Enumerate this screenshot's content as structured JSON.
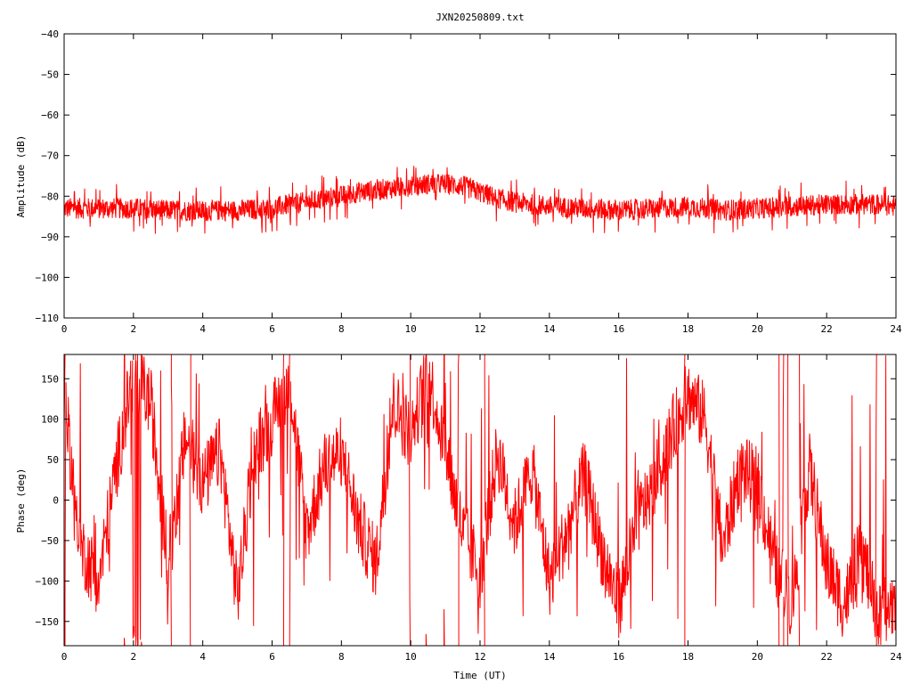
{
  "title": "JXN20250809.txt",
  "series_color": "#ff0000",
  "axis_color": "#000000",
  "chart_data": [
    {
      "type": "line",
      "panel": "amplitude",
      "title": "JXN20250809.txt",
      "xlabel": "",
      "ylabel": "Amplitude (dB)",
      "xlim": [
        0,
        24
      ],
      "ylim": [
        -110,
        -40
      ],
      "xticks": [
        "0",
        "2",
        "4",
        "6",
        "8",
        "10",
        "12",
        "14",
        "16",
        "18",
        "20",
        "22",
        "24"
      ],
      "yticks": [
        "-40",
        "-50",
        "-60",
        "-70",
        "-80",
        "-90",
        "-100",
        "-110"
      ],
      "grid": false,
      "series": [
        {
          "x": [
            0,
            0.5,
            1,
            1.5,
            2,
            2.5,
            3,
            3.5,
            4,
            4.5,
            5,
            5.5,
            6,
            6.5,
            7,
            7.5,
            8,
            8.5,
            9,
            9.5,
            10,
            10.5,
            11,
            11.5,
            12,
            12.5,
            13,
            13.5,
            14,
            14.5,
            15,
            15.5,
            16,
            16.5,
            17,
            17.5,
            18,
            18.5,
            19,
            19.5,
            20,
            20.5,
            21,
            21.5,
            22,
            22.5,
            23,
            23.5,
            24
          ],
          "values": [
            -83,
            -83,
            -83,
            -83,
            -83,
            -83.2,
            -83.5,
            -83.5,
            -83.7,
            -83.5,
            -83.5,
            -83.2,
            -83,
            -82,
            -81.5,
            -80.5,
            -80,
            -79,
            -78.5,
            -78,
            -77.5,
            -77,
            -77,
            -77.5,
            -79,
            -80.5,
            -81.5,
            -82,
            -82.5,
            -82.8,
            -83,
            -83.2,
            -83.5,
            -83.3,
            -83,
            -82.8,
            -82.5,
            -83,
            -83.5,
            -83.2,
            -83,
            -82.8,
            -82.5,
            -82.3,
            -82,
            -82,
            -82,
            -82,
            -82.5
          ],
          "spread_db": 4
        }
      ]
    },
    {
      "type": "line",
      "panel": "phase",
      "xlabel": "Time (UT)",
      "ylabel": "Phase (deg)",
      "xlim": [
        0,
        24
      ],
      "ylim": [
        -180,
        180
      ],
      "xticks": [
        "0",
        "2",
        "4",
        "6",
        "8",
        "10",
        "12",
        "14",
        "16",
        "18",
        "20",
        "22",
        "24"
      ],
      "yticks": [
        "150",
        "100",
        "50",
        "0",
        "-50",
        "-100",
        "-150"
      ],
      "grid": false,
      "series": [
        {
          "x": [
            0,
            0.5,
            1,
            1.5,
            2,
            2.5,
            3,
            3.5,
            4,
            4.5,
            5,
            5.5,
            6,
            6.5,
            7,
            7.5,
            8,
            8.5,
            9,
            9.5,
            10,
            10.5,
            11,
            11.5,
            12,
            12.5,
            13,
            13.5,
            14,
            14.5,
            15,
            15.5,
            16,
            16.5,
            17,
            17.5,
            18,
            18.5,
            19,
            19.5,
            20,
            20.5,
            21,
            21.5,
            22,
            22.5,
            23,
            23.5,
            24
          ],
          "values": [
            120,
            -60,
            -100,
            40,
            160,
            120,
            -80,
            80,
            20,
            60,
            -120,
            60,
            100,
            150,
            -40,
            40,
            60,
            -30,
            -80,
            120,
            80,
            160,
            60,
            -40,
            -90,
            60,
            -30,
            40,
            -100,
            -40,
            30,
            -60,
            -130,
            -30,
            20,
            80,
            130,
            100,
            -60,
            40,
            20,
            -80,
            -130,
            40,
            -80,
            -130,
            -60,
            -150,
            -120
          ],
          "wrap": true
        }
      ]
    }
  ]
}
